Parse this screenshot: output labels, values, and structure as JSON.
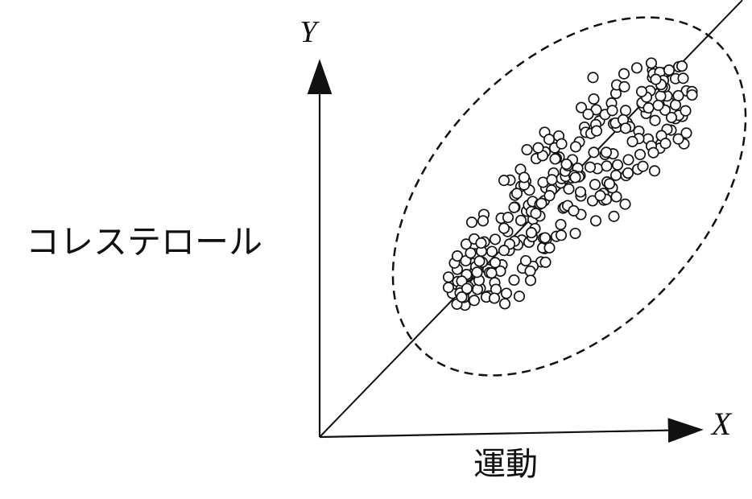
{
  "chart_data": {
    "type": "scatter",
    "x_axis_letter": "X",
    "y_axis_letter": "Y",
    "xlabel": "運動",
    "ylabel": "コレステロール",
    "grid": false,
    "legend": "none",
    "x_range": [
      0,
      10
    ],
    "y_range": [
      0,
      10
    ],
    "trend_line": {
      "from": [
        0,
        0
      ],
      "to": [
        10.5,
        11.8
      ]
    },
    "cloud": {
      "center": [
        6.2,
        6.5
      ],
      "spread_along": 3.9,
      "spread_across": 2.2
    },
    "points": [
      [
        5.59,
        8.23
      ],
      [
        6.79,
        9.71
      ],
      [
        5.14,
        6.1
      ],
      [
        6.84,
        6.82
      ],
      [
        8.78,
        9.11
      ],
      [
        3.86,
        4.48
      ],
      [
        8.48,
        7.92
      ],
      [
        7.93,
        8.26
      ],
      [
        3.43,
        4.2
      ],
      [
        5.99,
        6.86
      ],
      [
        8.67,
        9.05
      ],
      [
        5.58,
        6.38
      ],
      [
        8.92,
        10.0
      ],
      [
        6.05,
        6.18
      ],
      [
        4.09,
        5.27
      ],
      [
        8.32,
        7.19
      ],
      [
        6.1,
        6.99
      ],
      [
        8.45,
        7.8
      ],
      [
        5.02,
        5.32
      ],
      [
        5.19,
        6.26
      ],
      [
        9.11,
        9.35
      ],
      [
        7.61,
        7.06
      ],
      [
        6.28,
        7.49
      ],
      [
        3.67,
        4.35
      ],
      [
        3.42,
        4.53
      ],
      [
        5.0,
        6.77
      ],
      [
        4.53,
        4.65
      ],
      [
        6.95,
        8.54
      ],
      [
        3.35,
        4.7
      ],
      [
        8.27,
        9.91
      ],
      [
        9.11,
        8.21
      ],
      [
        7.64,
        8.48
      ],
      [
        8.55,
        9.84
      ],
      [
        4.24,
        4.51
      ],
      [
        5.15,
        7.76
      ],
      [
        8.73,
        8.29
      ],
      [
        4.6,
        3.6
      ],
      [
        7.09,
        7.63
      ],
      [
        4.85,
        6.53
      ],
      [
        7.06,
        6.4
      ],
      [
        4.2,
        3.81
      ],
      [
        7.96,
        7.63
      ],
      [
        3.63,
        3.97
      ],
      [
        3.99,
        4.01
      ],
      [
        4.08,
        6.01
      ],
      [
        6.45,
        7.97
      ],
      [
        6.09,
        6.21
      ],
      [
        5.3,
        5.88
      ],
      [
        7.37,
        6.49
      ],
      [
        9.25,
        9.33
      ],
      [
        4.96,
        3.8
      ],
      [
        5.12,
        6.91
      ],
      [
        5.62,
        6.73
      ],
      [
        3.87,
        4.73
      ],
      [
        3.64,
        5.21
      ],
      [
        4.99,
        7.23
      ],
      [
        6.26,
        7.0
      ],
      [
        7.36,
        9.28
      ],
      [
        3.61,
        3.56
      ],
      [
        5.55,
        6.88
      ],
      [
        8.84,
        8.97
      ],
      [
        5.6,
        7.7
      ],
      [
        5.04,
        4.56
      ],
      [
        8.63,
        9.21
      ],
      [
        6.47,
        7.06
      ],
      [
        5.5,
        4.73
      ],
      [
        5.7,
        8.04
      ],
      [
        9.01,
        8.66
      ],
      [
        8.16,
        8.05
      ],
      [
        7.05,
        6.58
      ],
      [
        7.59,
        6.29
      ],
      [
        4.36,
        5.34
      ],
      [
        5.35,
        5.63
      ],
      [
        7.31,
        5.96
      ],
      [
        4.67,
        5.55
      ],
      [
        9.05,
        7.92
      ],
      [
        5.81,
        7.13
      ],
      [
        3.42,
        4.89
      ],
      [
        6.9,
        7.25
      ],
      [
        8.27,
        9.71
      ],
      [
        3.63,
        4.76
      ],
      [
        5.84,
        7.81
      ],
      [
        8.91,
        9.22
      ],
      [
        6.01,
        6.98
      ],
      [
        3.78,
        5.8
      ],
      [
        3.55,
        3.89
      ],
      [
        5.21,
        6.67
      ],
      [
        6.5,
        8.9
      ],
      [
        7.56,
        9.81
      ],
      [
        3.3,
        3.88
      ],
      [
        6.41,
        7.26
      ],
      [
        5.95,
        7.56
      ],
      [
        4.73,
        6.94
      ],
      [
        6.11,
        7.04
      ],
      [
        7.93,
        8.06
      ],
      [
        6.49,
        6.51
      ],
      [
        6.44,
        7.03
      ],
      [
        6.49,
        6.01
      ],
      [
        6.16,
        6.25
      ],
      [
        7.3,
        8.46
      ],
      [
        7.29,
        7.65
      ],
      [
        5.47,
        5.97
      ],
      [
        4.28,
        5.01
      ],
      [
        8.57,
        9.45
      ],
      [
        4.85,
        6.21
      ],
      [
        6.1,
        7.18
      ],
      [
        8.33,
        8.55
      ],
      [
        6.32,
        7.06
      ],
      [
        4.35,
        4.17
      ],
      [
        7.9,
        7.23
      ],
      [
        5.94,
        8.13
      ],
      [
        6.35,
        7.01
      ],
      [
        4.51,
        5.91
      ],
      [
        5.41,
        6.25
      ],
      [
        6.01,
        7.92
      ],
      [
        8.21,
        9.35
      ],
      [
        4.68,
        5.93
      ],
      [
        7.09,
        8.71
      ],
      [
        5.08,
        6.81
      ],
      [
        5.2,
        5.26
      ],
      [
        5.59,
        5.09
      ],
      [
        8.47,
        9.21
      ],
      [
        3.92,
        3.99
      ],
      [
        4.18,
        4.53
      ],
      [
        5.29,
        6.36
      ],
      [
        8.24,
        7.86
      ],
      [
        8.58,
        8.83
      ],
      [
        6.35,
        5.5
      ],
      [
        6.86,
        8.44
      ],
      [
        5.54,
        5.11
      ],
      [
        3.69,
        4.06
      ],
      [
        7.25,
        9.02
      ],
      [
        8.63,
        8.31
      ],
      [
        4.58,
        6.93
      ],
      [
        3.96,
        4.23
      ],
      [
        3.85,
        4.95
      ],
      [
        5.88,
        7.53
      ],
      [
        5.3,
        4.61
      ],
      [
        8.01,
        9.01
      ],
      [
        7.12,
        6.42
      ],
      [
        4.49,
        4.48
      ],
      [
        5.76,
        6.67
      ],
      [
        7.12,
        7.69
      ],
      [
        6.19,
        6.7
      ],
      [
        7.22,
        6.77
      ],
      [
        7.38,
        9.51
      ],
      [
        3.2,
        4.04
      ],
      [
        8.11,
        8.74
      ],
      [
        7.27,
        6.73
      ],
      [
        4.9,
        6.58
      ],
      [
        4.92,
        5.19
      ],
      [
        8.91,
        8.05
      ],
      [
        8.29,
        7.68
      ],
      [
        8.41,
        8.96
      ],
      [
        4.04,
        4.72
      ],
      [
        4.84,
        5.29
      ],
      [
        8.84,
        9.68
      ],
      [
        8.84,
        8.6
      ],
      [
        5.61,
        4.72
      ],
      [
        4.38,
        3.99
      ],
      [
        4.06,
        5.84
      ],
      [
        3.88,
        4.6
      ],
      [
        8.29,
        9.81
      ],
      [
        7.13,
        7.32
      ],
      [
        5.38,
        7.52
      ],
      [
        6.81,
        7.69
      ],
      [
        4.58,
        5.64
      ],
      [
        6.16,
        7.33
      ],
      [
        3.84,
        3.69
      ],
      [
        6.72,
        7.29
      ],
      [
        5.0,
        5.85
      ],
      [
        7.14,
        6.89
      ],
      [
        5.99,
        5.74
      ],
      [
        8.06,
        8.92
      ],
      [
        8.45,
        9.85
      ],
      [
        7.36,
        7.07
      ],
      [
        8.92,
        8.69
      ],
      [
        4.83,
        4.24
      ],
      [
        3.65,
        4.39
      ],
      [
        5.26,
        6.09
      ],
      [
        6.87,
        8.84
      ],
      [
        6.86,
        5.84
      ],
      [
        7.7,
        8.38
      ],
      [
        3.41,
        3.59
      ],
      [
        8.01,
        9.03
      ],
      [
        7.77,
        7.98
      ],
      [
        6.48,
        6.62
      ],
      [
        6.81,
        9.13
      ],
      [
        8.24,
        10.1
      ],
      [
        3.2,
        4.32
      ],
      [
        8.74,
        8.63
      ],
      [
        7.39,
        8.37
      ],
      [
        6.58,
        8.37
      ],
      [
        9.09,
        8.81
      ],
      [
        5.56,
        5.37
      ],
      [
        5.23,
        4.48
      ],
      [
        5.77,
        6.95
      ],
      [
        5.37,
        6.04
      ],
      [
        8.49,
        8.14
      ],
      [
        7.57,
        9.46
      ],
      [
        5.28,
        5.41
      ],
      [
        4.36,
        4.71
      ],
      [
        4.71,
        5.04
      ],
      [
        5.71,
        6.52
      ],
      [
        7.88,
        9.97
      ],
      [
        6.78,
        6.38
      ],
      [
        8.51,
        9.46
      ],
      [
        9.0,
        10.02
      ],
      [
        3.97,
        4.75
      ],
      [
        3.51,
        3.99
      ],
      [
        3.53,
        4.21
      ],
      [
        6.61,
        8.23
      ],
      [
        6.36,
        7.84
      ],
      [
        5.08,
        7.01
      ],
      [
        4.22,
        4.44
      ],
      [
        4.02,
        5.02
      ],
      [
        8.59,
        7.93
      ],
      [
        3.49,
        3.89
      ],
      [
        8.54,
        9.63
      ],
      [
        7.27,
        8.82
      ],
      [
        5.54,
        7.6
      ],
      [
        8.48,
        9.52
      ],
      [
        8.12,
        9.18
      ],
      [
        5.88,
        5.42
      ],
      [
        3.58,
        3.77
      ],
      [
        7.2,
        6.84
      ],
      [
        3.53,
        3.78
      ],
      [
        7.67,
        7.49
      ],
      [
        5.85,
        7.51
      ],
      [
        5.63,
        5.34
      ],
      [
        3.84,
        5.35
      ],
      [
        8.68,
        9.91
      ],
      [
        8.35,
        9.66
      ],
      [
        4.27,
        4.43
      ],
      [
        7.35,
        8.48
      ],
      [
        6.31,
        6.11
      ],
      [
        4.72,
        5.21
      ],
      [
        3.91,
        4.45
      ],
      [
        8.0,
        9.33
      ],
      [
        5.26,
        5.52
      ],
      [
        6.13,
        7.37
      ],
      [
        4.01,
        5.24
      ],
      [
        5.47,
        6.29
      ],
      [
        7.4,
        7.35
      ],
      [
        4.58,
        5.04
      ],
      [
        5.24,
        4.23
      ],
      [
        6.74,
        8.2
      ],
      [
        6.67,
        8.72
      ],
      [
        8.03,
        7.31
      ],
      [
        5.71,
        5.11
      ],
      [
        7.6,
        8.82
      ],
      [
        3.75,
        4.97
      ],
      [
        5.43,
        7.81
      ],
      [
        7.54,
        8.57
      ],
      [
        9.25,
        9.24
      ],
      [
        5.51,
        6.31
      ],
      [
        4.64,
        3.88
      ],
      [
        9.03,
        9.69
      ],
      [
        6.88,
        8.27
      ],
      [
        5.12,
        4.76
      ],
      [
        3.66,
        4.01
      ],
      [
        7.6,
        8.34
      ],
      [
        4.14,
        3.78
      ],
      [
        6.97,
        6.52
      ],
      [
        8.17,
        8.89
      ],
      [
        4.83,
        6.2
      ],
      [
        5.6,
        5.38
      ],
      [
        4.34,
        3.75
      ],
      [
        7.66,
        7.13
      ],
      [
        6.0,
        5.45
      ]
    ]
  }
}
